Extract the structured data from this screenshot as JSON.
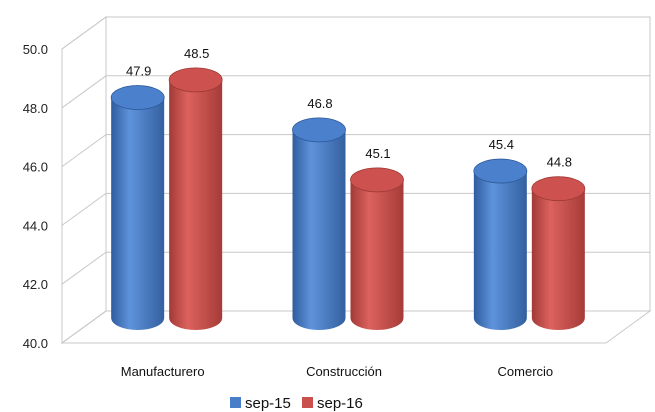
{
  "chart_data": {
    "type": "bar",
    "categories": [
      "Manufacturero",
      "Construcción",
      "Comercio"
    ],
    "series": [
      {
        "name": "sep-15",
        "values": [
          47.9,
          46.8,
          45.4
        ],
        "color": "#4A7EC9"
      },
      {
        "name": "sep-16",
        "values": [
          48.5,
          45.1,
          44.8
        ],
        "color": "#C9504D"
      }
    ],
    "data_labels": [
      [
        "47.9",
        "46.8",
        "45.4"
      ],
      [
        "48.5",
        "45.1",
        "44.8"
      ]
    ],
    "ylim": [
      40,
      50
    ],
    "yticks": [
      "40.0",
      "42.0",
      "44.0",
      "46.0",
      "48.0",
      "50.0"
    ],
    "style": "3d-cylinder",
    "grid": true,
    "legend_position": "bottom"
  }
}
